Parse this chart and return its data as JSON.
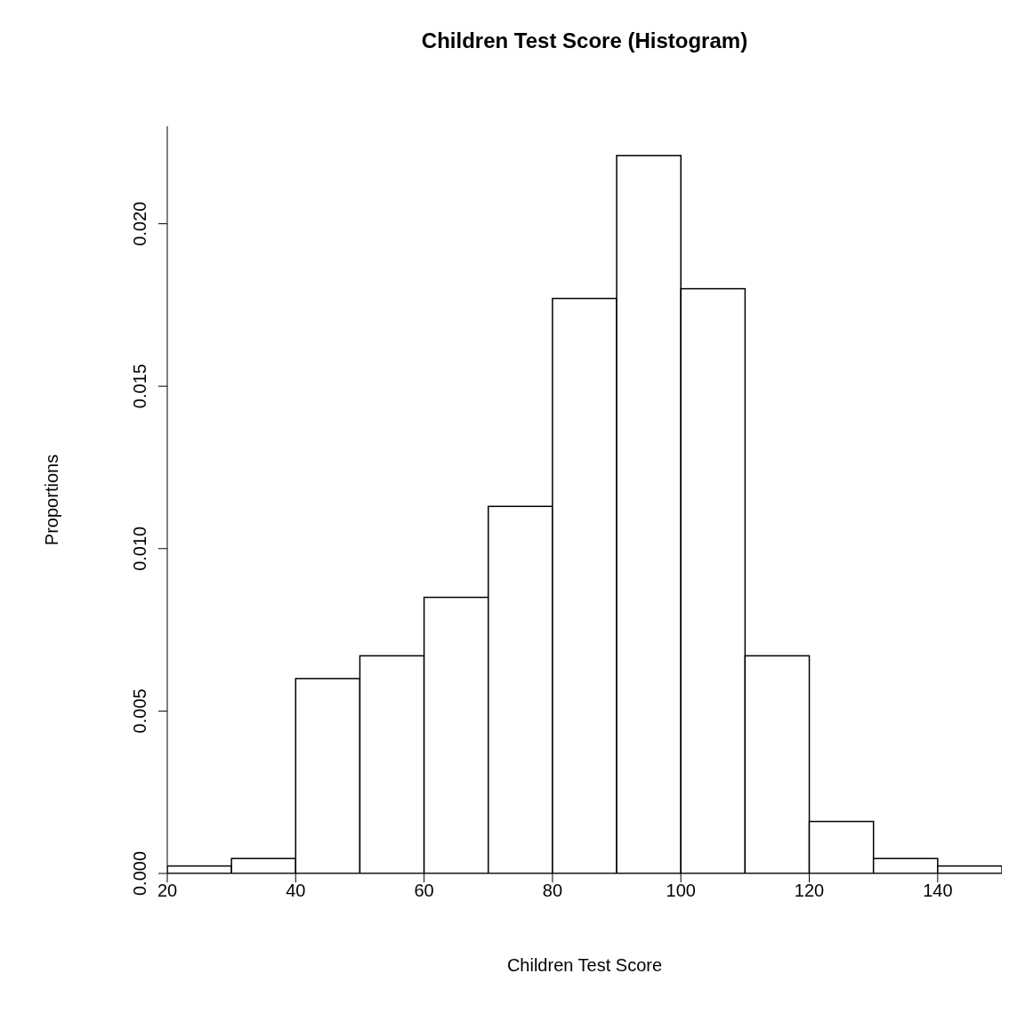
{
  "chart_data": {
    "type": "histogram",
    "title": "Children Test Score (Histogram)",
    "xlabel": "Children Test Score",
    "ylabel": "Proportions",
    "bins": [
      20,
      30,
      40,
      50,
      60,
      70,
      80,
      90,
      100,
      110,
      120,
      130,
      140,
      150
    ],
    "values": [
      0.00023,
      0.00046,
      0.006,
      0.0067,
      0.0085,
      0.0113,
      0.0177,
      0.0221,
      0.018,
      0.0067,
      0.0016,
      0.00046,
      0.00023
    ],
    "color": "#ffffff",
    "xlim": [
      20,
      150
    ],
    "xticks": [
      20,
      40,
      60,
      80,
      100,
      120,
      140
    ],
    "ylim": [
      0,
      0.023
    ],
    "yticks": [
      {
        "value": 0,
        "label": "0.000"
      },
      {
        "value": 0.005,
        "label": "0.005"
      },
      {
        "value": 0.01,
        "label": "0.010"
      },
      {
        "value": 0.015,
        "label": "0.015"
      },
      {
        "value": 0.02,
        "label": "0.020"
      }
    ]
  }
}
